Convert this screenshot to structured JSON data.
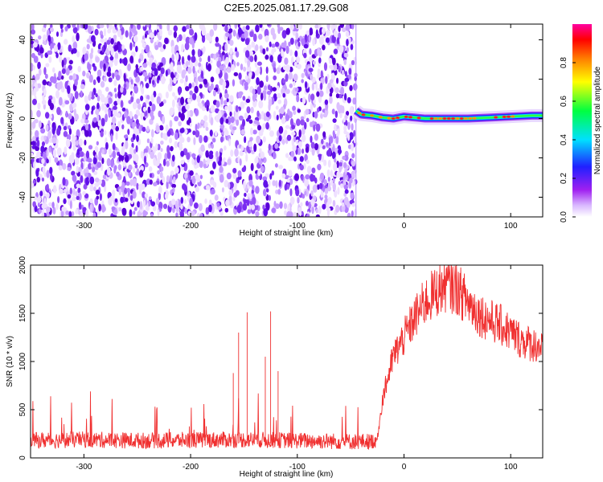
{
  "figure": {
    "title": "C2E5.2025.081.17.29.G08"
  },
  "chart_data": [
    {
      "type": "heatmap",
      "title": "C2E5.2025.081.17.29.G08",
      "xlabel": "Height of straight line (km)",
      "ylabel": "Frequency (Hz)",
      "xlim": [
        -350,
        130
      ],
      "ylim": [
        -50,
        48
      ],
      "x_ticks": [
        -300,
        -200,
        -100,
        0,
        100
      ],
      "y_ticks": [
        -40,
        -20,
        0,
        20,
        40
      ],
      "noise_region_x": [
        -350,
        -45
      ],
      "signal_track": {
        "x": [
          -45,
          -40,
          -30,
          -20,
          -10,
          0,
          10,
          20,
          40,
          60,
          80,
          100,
          120,
          130
        ],
        "frequency": [
          4,
          2,
          1.5,
          0.5,
          0,
          1,
          0.5,
          0,
          0,
          0,
          0.5,
          1,
          1.5,
          1.5
        ]
      },
      "colorbar": {
        "label": "Normalized spectral amplitude",
        "range": [
          0.0,
          1.0
        ],
        "ticks": [
          0.0,
          0.2,
          0.4,
          0.6,
          0.8
        ],
        "tick_labels": [
          "0.0",
          "0.2",
          "0.4",
          "0.6",
          "0.8"
        ],
        "colors": [
          "#ffffff",
          "#a020f0",
          "#2020ff",
          "#00e0ff",
          "#00ff40",
          "#ffff00",
          "#ff7f00",
          "#ff0000",
          "#ff00a0"
        ]
      }
    },
    {
      "type": "line",
      "xlabel": "Height of straight line (km)",
      "ylabel": "SNR (10 * v/v)",
      "xlim": [
        -350,
        130
      ],
      "ylim": [
        0,
        2000
      ],
      "x_ticks": [
        -300,
        -200,
        -100,
        0,
        100
      ],
      "y_ticks": [
        0,
        500,
        1000,
        1500,
        2000
      ],
      "color": "#f03030",
      "series": [
        {
          "x": [
            -350,
            -300,
            -250,
            -200,
            -150,
            -100,
            -50,
            -30,
            -25,
            -20,
            -10,
            0,
            10,
            20,
            30,
            40,
            50,
            60,
            70,
            80,
            90,
            100,
            110,
            120,
            130
          ],
          "values": [
            180,
            190,
            180,
            185,
            190,
            180,
            170,
            170,
            200,
            620,
            1050,
            1250,
            1450,
            1620,
            1720,
            1800,
            1750,
            1620,
            1500,
            1430,
            1380,
            1300,
            1220,
            1180,
            1150
          ]
        }
      ],
      "spikes": [
        {
          "x": -155,
          "value": 1300
        },
        {
          "x": -147,
          "value": 1510
        },
        {
          "x": -125,
          "value": 1520
        },
        {
          "x": -130,
          "value": 1050
        },
        {
          "x": -160,
          "value": 880
        },
        {
          "x": -118,
          "value": 900
        }
      ]
    }
  ]
}
